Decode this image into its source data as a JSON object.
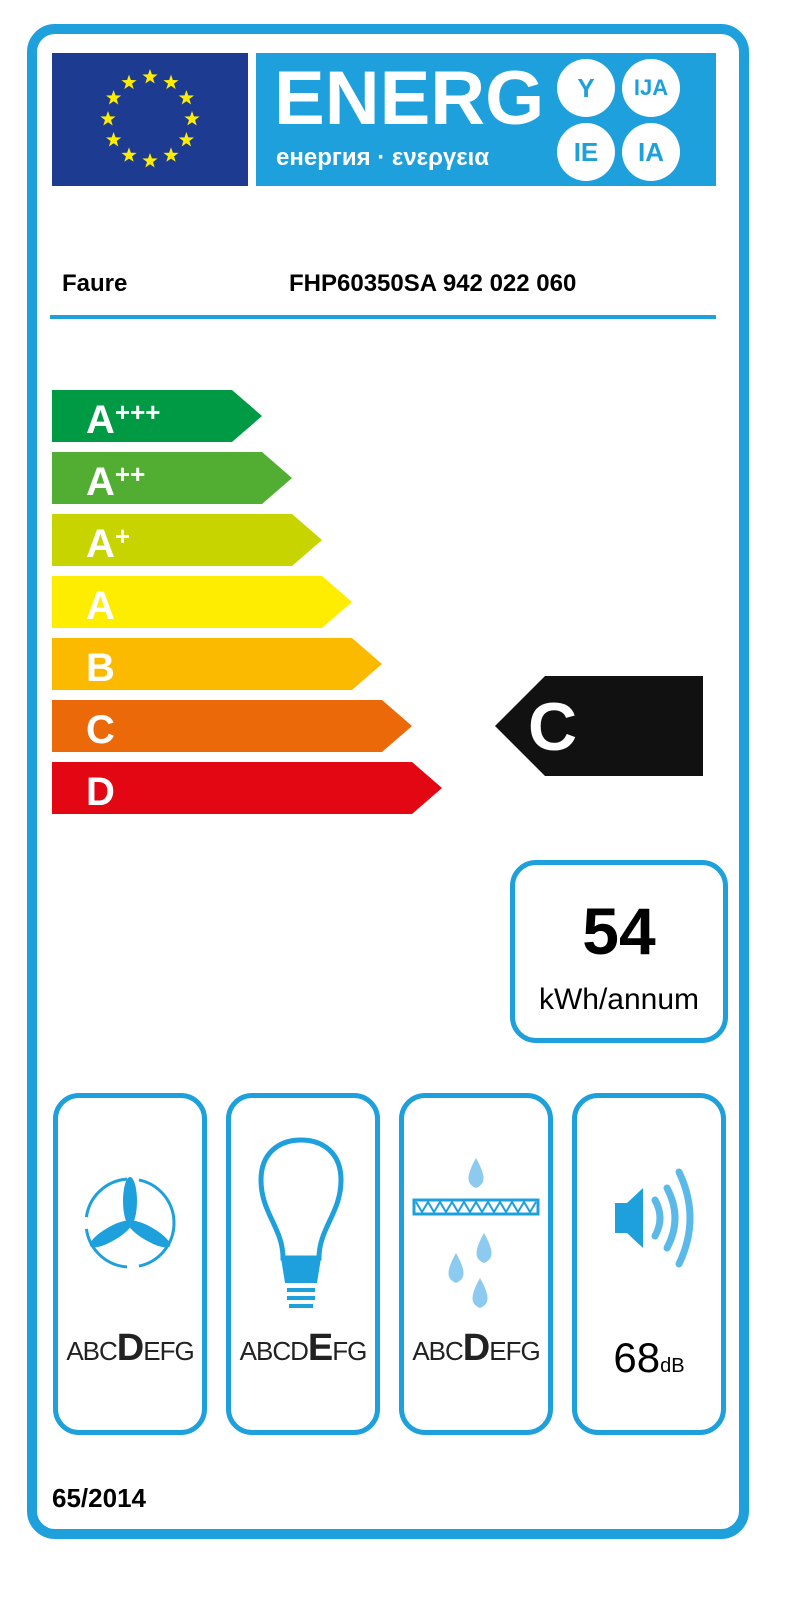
{
  "header": {
    "energy_word": "ENERG",
    "subtitle": "енергия · ενεργεια",
    "suffixes": [
      "Y",
      "IJA",
      "IE",
      "IA"
    ]
  },
  "product": {
    "brand": "Faure",
    "model": "FHP60350SA  942 022 060"
  },
  "colors": {
    "accent": "#1ea0dc",
    "eu_blue": "#1d3c91",
    "star": "#ffed00"
  },
  "classes": [
    {
      "letter": "A",
      "plus": "+++",
      "color": "#009a44"
    },
    {
      "letter": "A",
      "plus": "++",
      "color": "#52ae32"
    },
    {
      "letter": "A",
      "plus": "+",
      "color": "#c8d400"
    },
    {
      "letter": "A",
      "plus": "",
      "color": "#ffed00"
    },
    {
      "letter": "B",
      "plus": "",
      "color": "#fbba00"
    },
    {
      "letter": "C",
      "plus": "",
      "color": "#eb6909"
    },
    {
      "letter": "D",
      "plus": "",
      "color": "#e30613"
    }
  ],
  "rating": {
    "class": "C",
    "index": 5
  },
  "consumption": {
    "value": "54",
    "unit": "kWh/annum"
  },
  "panels": [
    {
      "icon": "fan-icon",
      "pre": "ABC",
      "hl": "D",
      "post": "EFG"
    },
    {
      "icon": "light-bulb-icon",
      "pre": "ABCD",
      "hl": "E",
      "post": "FG"
    },
    {
      "icon": "grease-filter-icon",
      "pre": "ABC",
      "hl": "D",
      "post": "EFG"
    },
    {
      "icon": "sound-icon",
      "value": "68",
      "unit": "dB"
    }
  ],
  "regulation": "65/2014"
}
